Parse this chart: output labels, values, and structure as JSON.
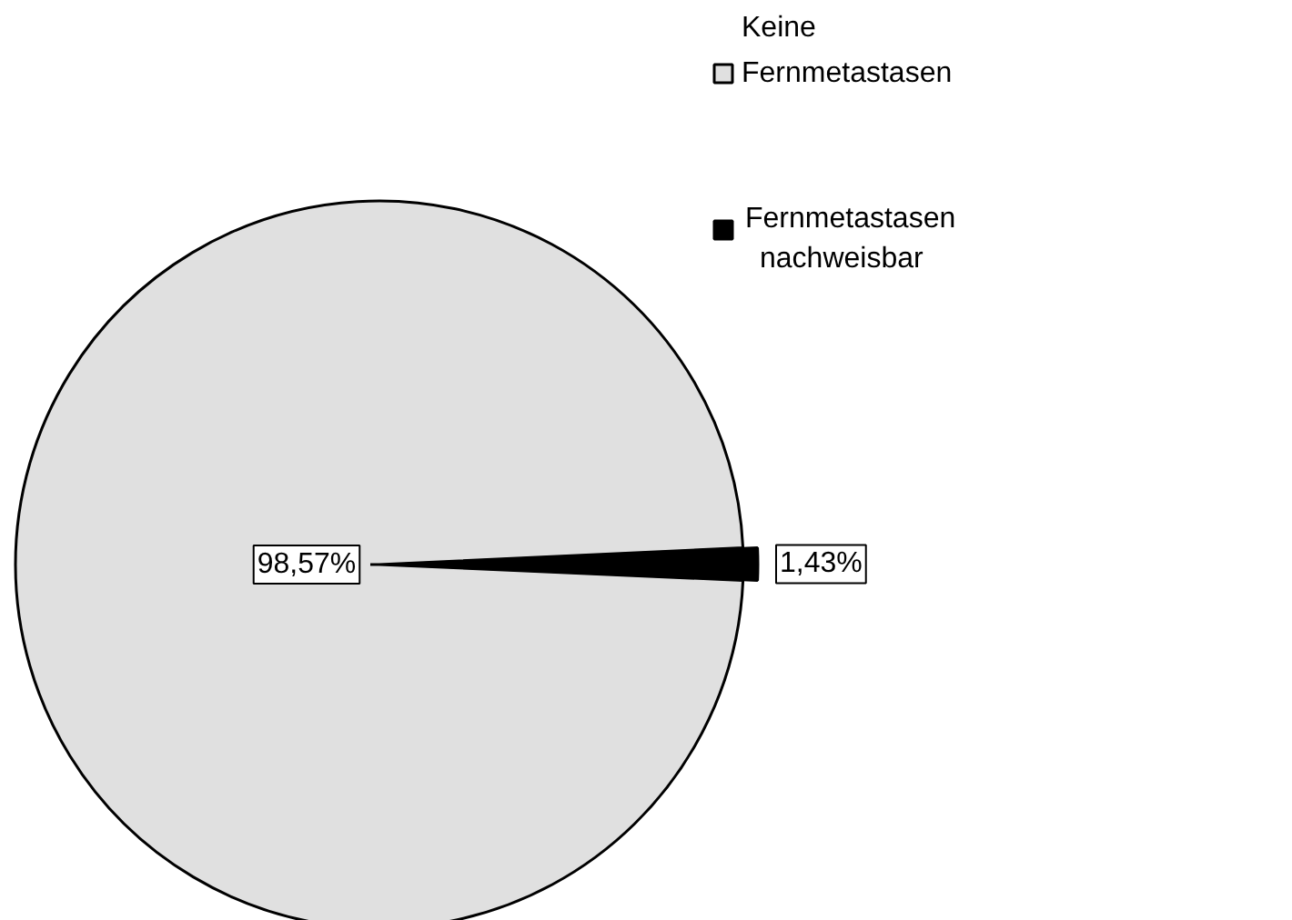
{
  "chart_data": {
    "type": "pie",
    "categories": [
      "Keine Fernmetastasen",
      "Fernmetastasen nachweisbar"
    ],
    "values": [
      98.57,
      1.43
    ],
    "colors": [
      "#e0e0e0",
      "#000000"
    ],
    "value_labels": [
      "98,57%",
      "1,43%"
    ],
    "legend": "top right"
  }
}
